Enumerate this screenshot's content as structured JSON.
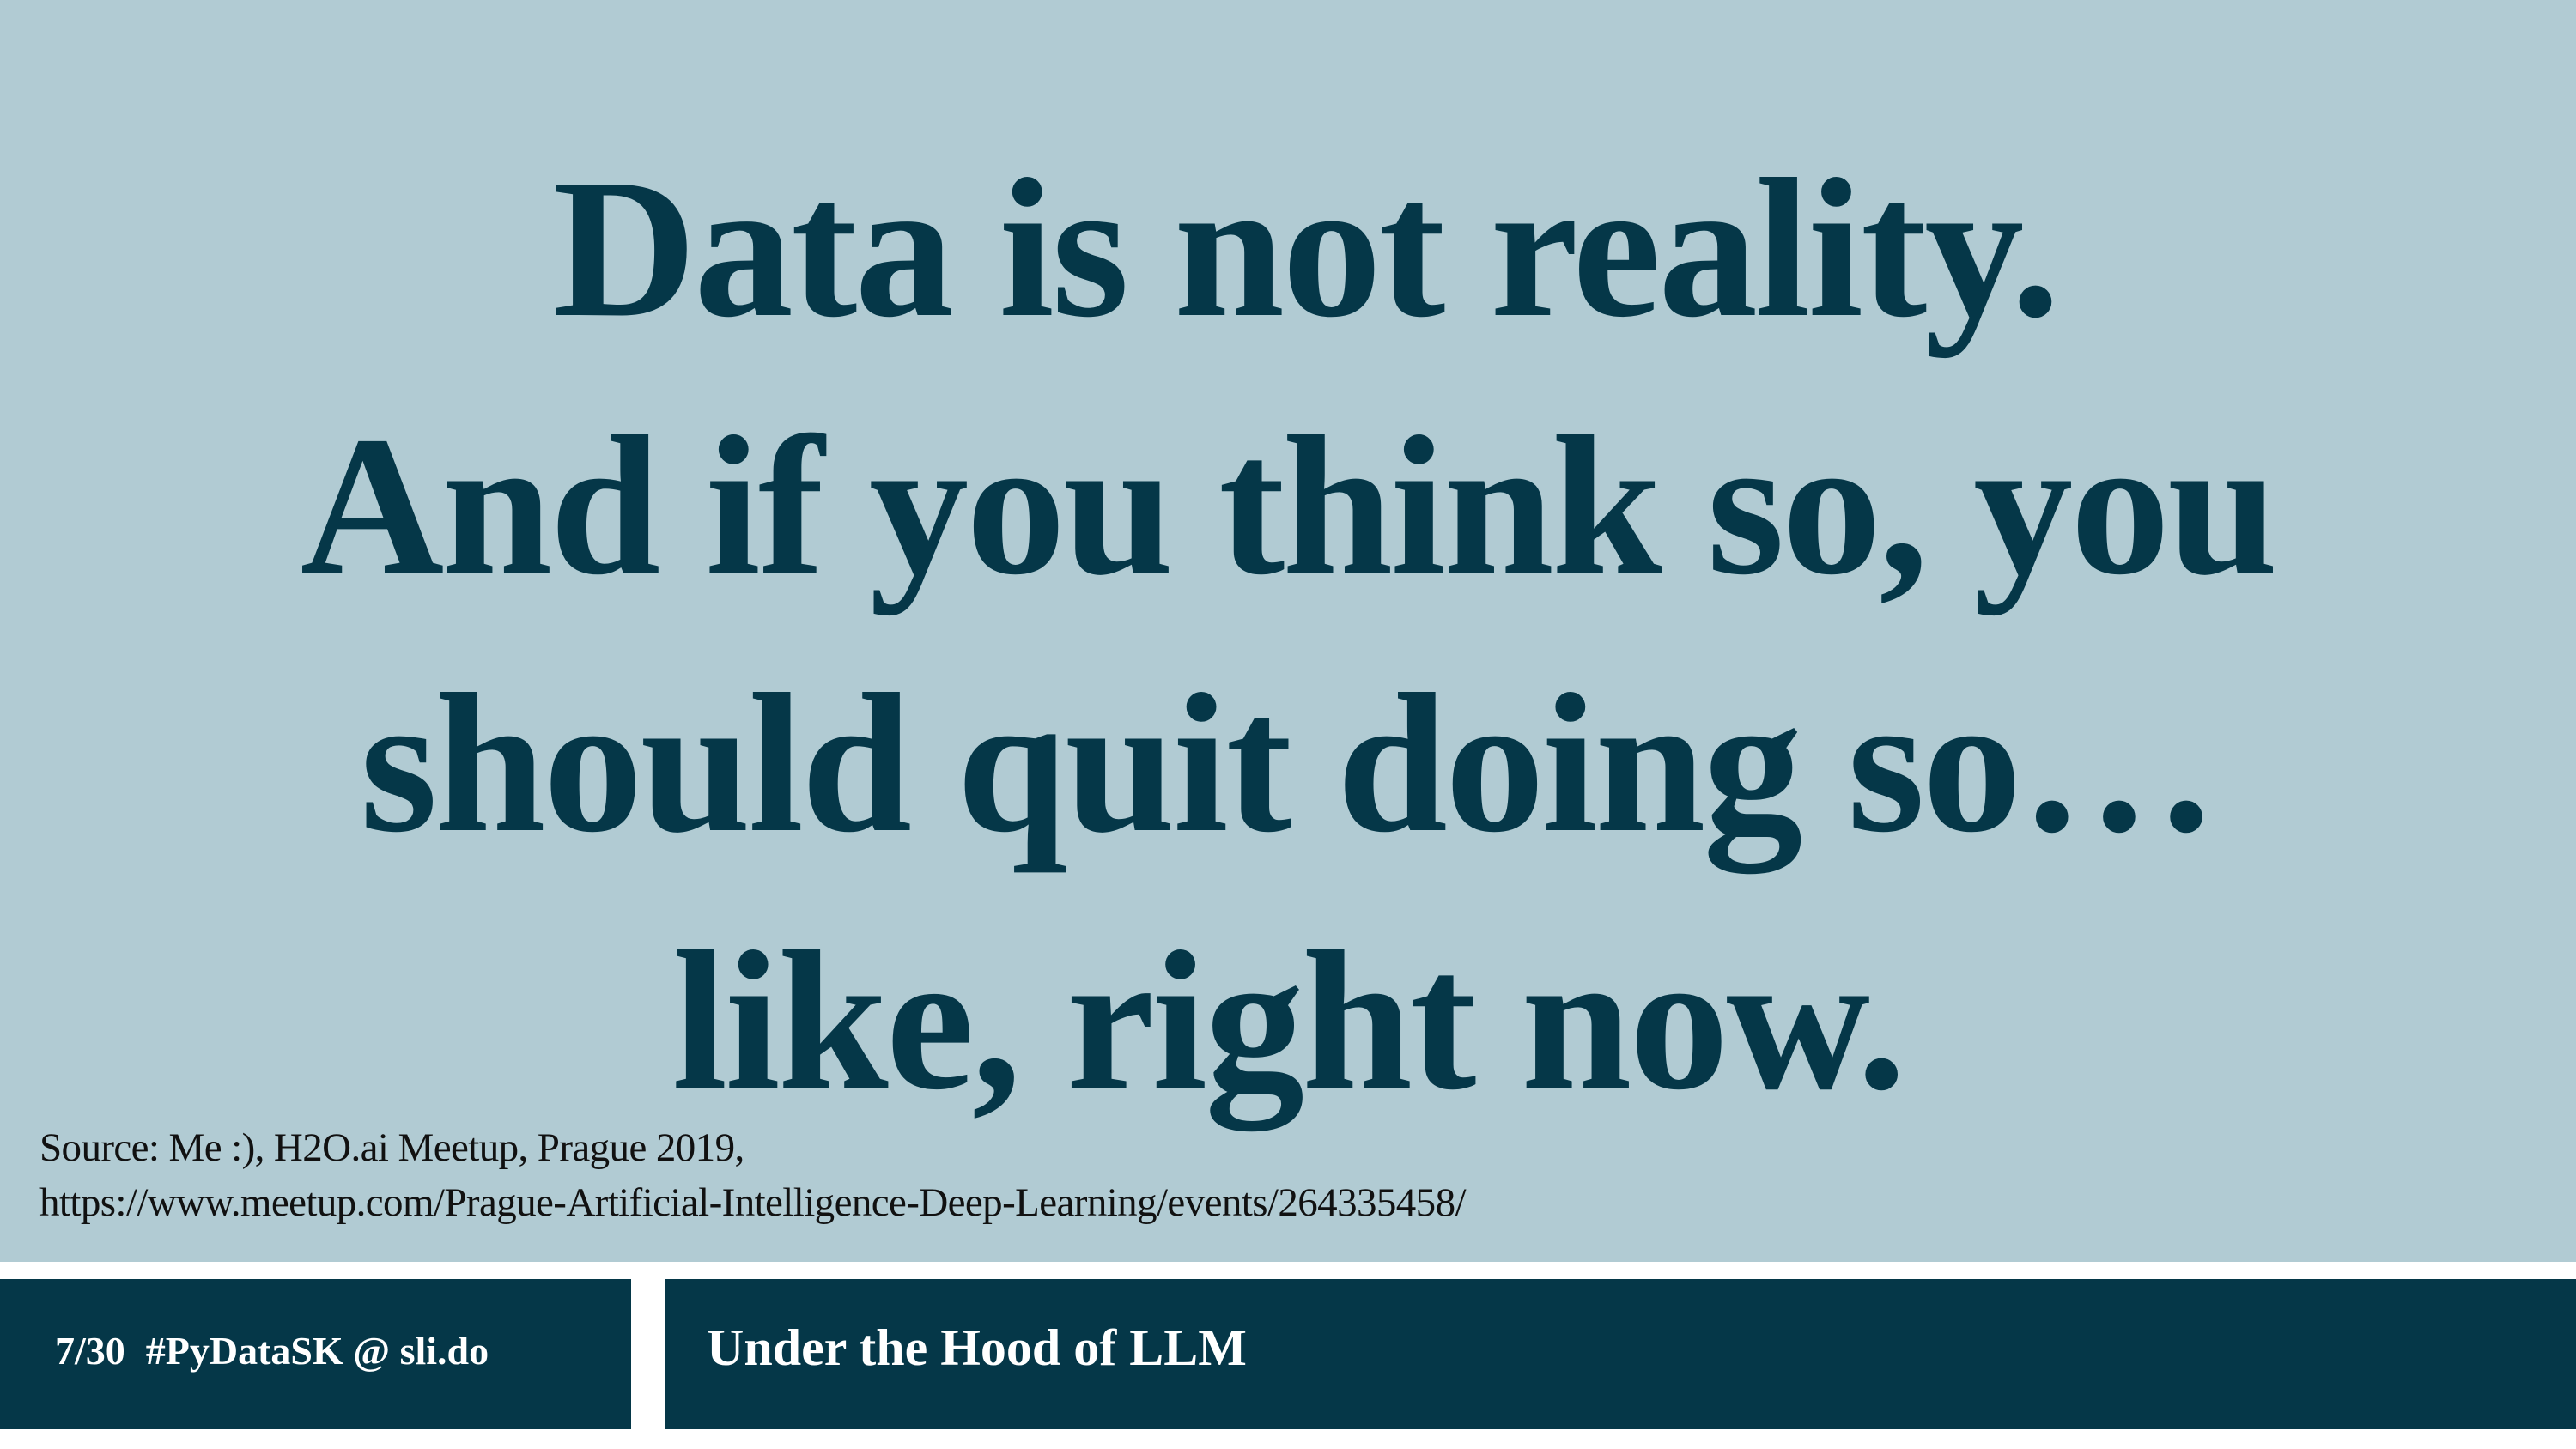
{
  "slide": {
    "background_color": "#b1cbd3",
    "accent_color": "#053748",
    "headline": [
      "Data is not reality.",
      "And if you think so, you",
      "should quit doing so…",
      "like, right now."
    ],
    "source": [
      "Source: Me :), H2O.ai Meetup, Prague 2019,",
      "https://www.meetup.com/Prague-Artificial-Intelligence-Deep-Learning/events/264335458/"
    ]
  },
  "footer": {
    "page_number": "7/30",
    "hashtag": "#PyDataSK @ sli.do",
    "title": "Under the Hood of LLM"
  }
}
